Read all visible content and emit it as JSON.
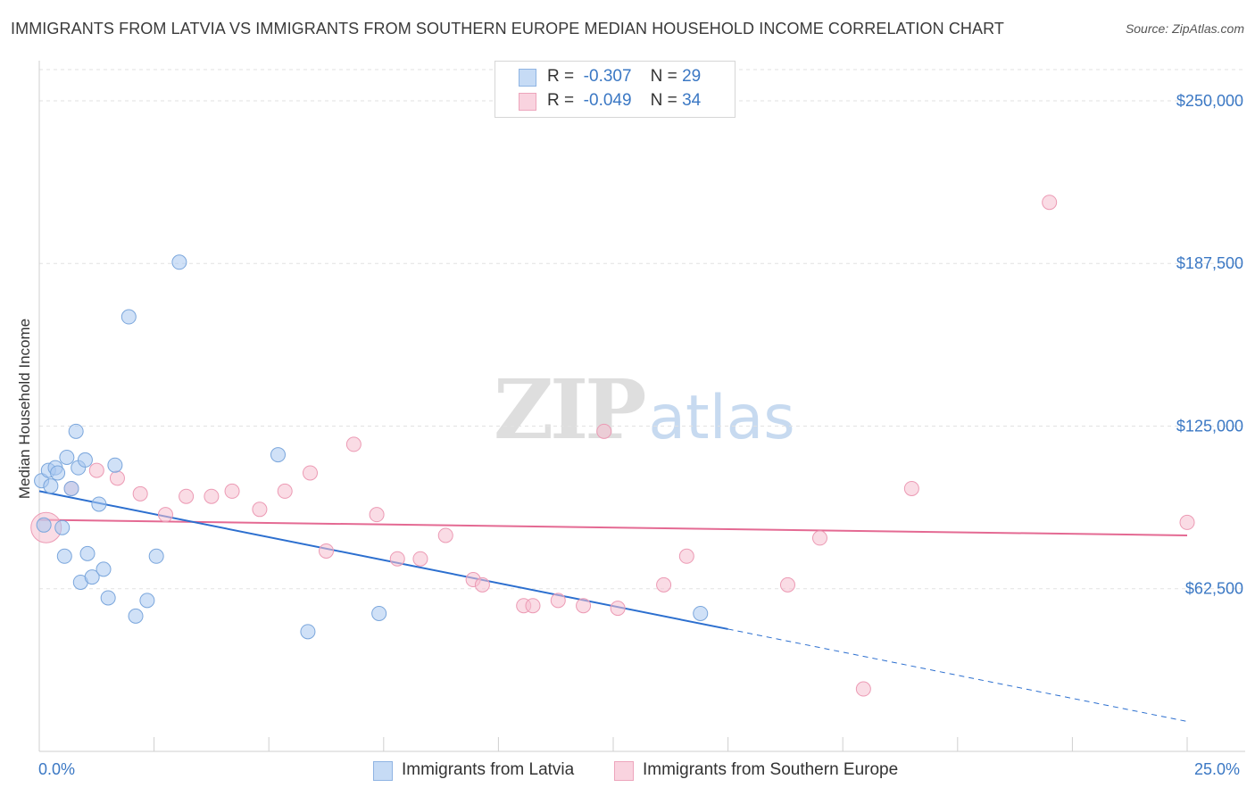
{
  "title": "IMMIGRANTS FROM LATVIA VS IMMIGRANTS FROM SOUTHERN EUROPE MEDIAN HOUSEHOLD INCOME CORRELATION CHART",
  "source": "Source: ZipAtlas.com",
  "watermark": {
    "zip": "ZIP",
    "atlas": "atlas"
  },
  "legend": {
    "rows": [
      {
        "r_label": "R =",
        "r_value": "-0.307",
        "n_label": "N =",
        "n_value": "29"
      },
      {
        "r_label": "R =",
        "r_value": "-0.049",
        "n_label": "N =",
        "n_value": "34"
      }
    ]
  },
  "colors": {
    "blue_fill": "#a9c9f0",
    "blue_stroke": "#7aa6dc",
    "blue_line": "#2c6fcf",
    "pink_fill": "#f6bfd0",
    "pink_stroke": "#ec9ab4",
    "pink_line": "#e46a93",
    "tick_text": "#3b78c4",
    "grid": "#e2e2e2"
  },
  "chart_data": {
    "type": "scatter",
    "title": "IMMIGRANTS FROM LATVIA VS IMMIGRANTS FROM SOUTHERN EUROPE MEDIAN HOUSEHOLD INCOME CORRELATION CHART",
    "xlabel": "",
    "ylabel": "Median Household Income",
    "xlim": [
      0,
      25
    ],
    "ylim": [
      0,
      262000
    ],
    "x_tick_labels": [
      "0.0%",
      "25.0%"
    ],
    "y_ticks": [
      62500,
      125000,
      187500,
      250000
    ],
    "y_tick_labels": [
      "$62,500",
      "$125,000",
      "$187,500",
      "$250,000"
    ],
    "grid": true,
    "legend_position": "top-center",
    "series": [
      {
        "name": "Immigrants from Latvia",
        "color": "#a9c9f0",
        "R": -0.307,
        "N": 29,
        "points": [
          [
            0.05,
            104000
          ],
          [
            0.1,
            87000
          ],
          [
            0.2,
            108000
          ],
          [
            0.25,
            102000
          ],
          [
            0.35,
            109000
          ],
          [
            0.4,
            107000
          ],
          [
            0.5,
            86000
          ],
          [
            0.55,
            75000
          ],
          [
            0.6,
            113000
          ],
          [
            0.7,
            101000
          ],
          [
            0.8,
            123000
          ],
          [
            0.85,
            109000
          ],
          [
            0.9,
            65000
          ],
          [
            1.0,
            112000
          ],
          [
            1.05,
            76000
          ],
          [
            1.15,
            67000
          ],
          [
            1.3,
            95000
          ],
          [
            1.4,
            70000
          ],
          [
            1.5,
            59000
          ],
          [
            1.65,
            110000
          ],
          [
            1.95,
            167000
          ],
          [
            2.1,
            52000
          ],
          [
            2.35,
            58000
          ],
          [
            2.55,
            75000
          ],
          [
            3.05,
            188000
          ],
          [
            5.2,
            114000
          ],
          [
            5.85,
            46000
          ],
          [
            7.4,
            53000
          ],
          [
            14.4,
            53000
          ]
        ],
        "trend": {
          "x": [
            0,
            15
          ],
          "y": [
            100000,
            47000
          ],
          "dashed_extension": {
            "x": [
              15,
              25
            ],
            "y": [
              47000,
              11500
            ]
          }
        }
      },
      {
        "name": "Immigrants from Southern Europe",
        "color": "#f6bfd0",
        "R": -0.049,
        "N": 34,
        "points": [
          [
            0.15,
            86000
          ],
          [
            0.7,
            101000
          ],
          [
            1.25,
            108000
          ],
          [
            1.7,
            105000
          ],
          [
            2.2,
            99000
          ],
          [
            2.75,
            91000
          ],
          [
            3.2,
            98000
          ],
          [
            3.75,
            98000
          ],
          [
            4.2,
            100000
          ],
          [
            4.8,
            93000
          ],
          [
            5.35,
            100000
          ],
          [
            5.9,
            107000
          ],
          [
            6.25,
            77000
          ],
          [
            6.85,
            118000
          ],
          [
            7.35,
            91000
          ],
          [
            7.8,
            74000
          ],
          [
            8.3,
            74000
          ],
          [
            8.85,
            83000
          ],
          [
            9.45,
            66000
          ],
          [
            9.65,
            64000
          ],
          [
            10.55,
            56000
          ],
          [
            10.75,
            56000
          ],
          [
            11.3,
            58000
          ],
          [
            11.85,
            56000
          ],
          [
            12.3,
            123000
          ],
          [
            12.6,
            55000
          ],
          [
            13.6,
            64000
          ],
          [
            14.1,
            75000
          ],
          [
            16.3,
            64000
          ],
          [
            17.0,
            82000
          ],
          [
            17.95,
            24000
          ],
          [
            19.0,
            101000
          ],
          [
            22.0,
            211000
          ],
          [
            25.0,
            88000
          ]
        ],
        "trend": {
          "x": [
            0,
            25
          ],
          "y": [
            89000,
            83000
          ]
        }
      }
    ]
  },
  "axis_labels": {
    "x_left": "0.0%",
    "x_right": "25.0%"
  }
}
